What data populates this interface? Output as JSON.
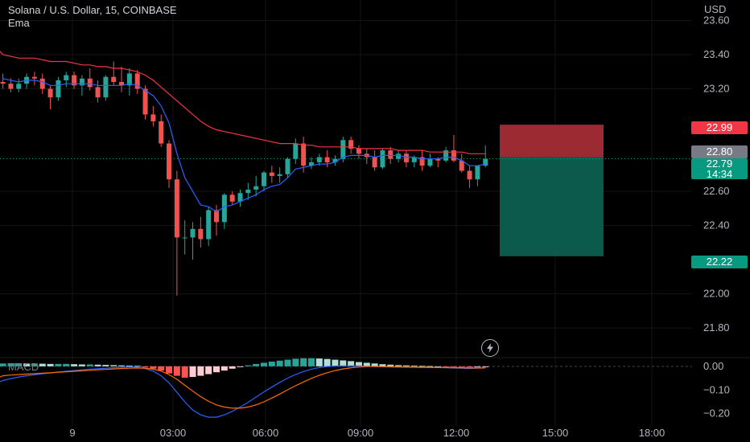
{
  "header": {
    "symbol_line": "Solana / U.S. Dollar, 15, COINBASE",
    "indicator": "Ema",
    "currency": "USD"
  },
  "macd_label": "MACD",
  "colors": {
    "up": "#26a69a",
    "down": "#ef5350",
    "ema_fast": "#2962ff",
    "ema_slow": "#f23645",
    "macd_line": "#2962ff",
    "signal_line": "#ff6d00",
    "stop_zone": "#9b2a33",
    "target_zone": "#0b5a4c",
    "hist_up_strong": "#26a69a",
    "hist_up_weak": "#b2dfdb",
    "hist_down_strong": "#ff5252",
    "hist_down_weak": "#ffcdd2",
    "badge_stop": "#f23645",
    "badge_current": "#787b86",
    "badge_price": "#089981",
    "badge_target": "#089981"
  },
  "badges": {
    "stop": "22.99",
    "current": "22.80",
    "last_price": "22.79",
    "countdown": "14:34",
    "target": "22.22"
  },
  "chart_data": {
    "type": "candlestick",
    "interval": "15",
    "y_ticks": [
      "23.60",
      "23.40",
      "23.20",
      "22.60",
      "22.40",
      "22.00",
      "21.80"
    ],
    "y_ticks_hidden_by_badges": [
      "23.00",
      "22.80",
      "22.20"
    ],
    "ylim": [
      21.65,
      23.72
    ],
    "x_ticks": [
      "9",
      "03:00",
      "06:00",
      "09:00",
      "12:00",
      "15:00",
      "18:00"
    ],
    "macd_ticks": [
      "0.00",
      "−0.10",
      "−0.20"
    ],
    "macd_ylim": [
      -0.235,
      0.03
    ],
    "position": {
      "side": "short",
      "entry": 22.8,
      "stop": 22.99,
      "target": 22.22
    },
    "candles": [
      [
        23.24,
        23.29,
        23.2,
        23.23
      ],
      [
        23.23,
        23.26,
        23.18,
        23.2
      ],
      [
        23.2,
        23.26,
        23.18,
        23.23
      ],
      [
        23.23,
        23.29,
        23.2,
        23.27
      ],
      [
        23.27,
        23.3,
        23.22,
        23.26
      ],
      [
        23.26,
        23.29,
        23.17,
        23.2
      ],
      [
        23.2,
        23.22,
        23.08,
        23.15
      ],
      [
        23.15,
        23.27,
        23.13,
        23.25
      ],
      [
        23.25,
        23.3,
        23.21,
        23.28
      ],
      [
        23.28,
        23.3,
        23.2,
        23.22
      ],
      [
        23.22,
        23.28,
        23.16,
        23.26
      ],
      [
        23.26,
        23.32,
        23.19,
        23.21
      ],
      [
        23.21,
        23.25,
        23.12,
        23.15
      ],
      [
        23.15,
        23.28,
        23.13,
        23.27
      ],
      [
        23.27,
        23.36,
        23.22,
        23.24
      ],
      [
        23.24,
        23.33,
        23.18,
        23.22
      ],
      [
        23.22,
        23.32,
        23.16,
        23.29
      ],
      [
        23.29,
        23.31,
        23.17,
        23.2
      ],
      [
        23.2,
        23.22,
        23.02,
        23.05
      ],
      [
        23.05,
        23.1,
        22.98,
        23.01
      ],
      [
        23.01,
        23.05,
        22.86,
        22.88
      ],
      [
        22.88,
        22.9,
        22.62,
        22.67
      ],
      [
        22.67,
        22.72,
        21.99,
        22.33
      ],
      [
        22.33,
        22.43,
        22.23,
        22.33
      ],
      [
        22.33,
        22.42,
        22.2,
        22.38
      ],
      [
        22.38,
        22.45,
        22.27,
        22.32
      ],
      [
        22.32,
        22.51,
        22.28,
        22.49
      ],
      [
        22.49,
        22.52,
        22.34,
        22.42
      ],
      [
        22.42,
        22.59,
        22.38,
        22.58
      ],
      [
        22.58,
        22.6,
        22.52,
        22.54
      ],
      [
        22.54,
        22.61,
        22.51,
        22.59
      ],
      [
        22.59,
        22.65,
        22.55,
        22.61
      ],
      [
        22.61,
        22.69,
        22.57,
        22.63
      ],
      [
        22.63,
        22.72,
        22.6,
        22.71
      ],
      [
        22.71,
        22.75,
        22.65,
        22.69
      ],
      [
        22.69,
        22.74,
        22.65,
        22.7
      ],
      [
        22.7,
        22.8,
        22.68,
        22.79
      ],
      [
        22.79,
        22.91,
        22.76,
        22.88
      ],
      [
        22.88,
        22.92,
        22.71,
        22.75
      ],
      [
        22.75,
        22.8,
        22.73,
        22.77
      ],
      [
        22.77,
        22.82,
        22.75,
        22.8
      ],
      [
        22.8,
        22.84,
        22.74,
        22.77
      ],
      [
        22.77,
        22.81,
        22.75,
        22.79
      ],
      [
        22.79,
        22.92,
        22.77,
        22.9
      ],
      [
        22.9,
        22.92,
        22.82,
        22.85
      ],
      [
        22.85,
        22.87,
        22.79,
        22.82
      ],
      [
        22.82,
        22.85,
        22.76,
        22.8
      ],
      [
        22.8,
        22.84,
        22.72,
        22.74
      ],
      [
        22.74,
        22.85,
        22.73,
        22.84
      ],
      [
        22.84,
        22.86,
        22.76,
        22.79
      ],
      [
        22.79,
        22.84,
        22.77,
        22.82
      ],
      [
        22.82,
        22.84,
        22.74,
        22.77
      ],
      [
        22.77,
        22.81,
        22.74,
        22.8
      ],
      [
        22.8,
        22.84,
        22.72,
        22.75
      ],
      [
        22.75,
        22.82,
        22.74,
        22.79
      ],
      [
        22.79,
        22.8,
        22.74,
        22.78
      ],
      [
        22.78,
        22.86,
        22.77,
        22.84
      ],
      [
        22.84,
        22.93,
        22.77,
        22.78
      ],
      [
        22.78,
        22.82,
        22.71,
        22.72
      ],
      [
        22.72,
        22.75,
        22.62,
        22.67
      ],
      [
        22.67,
        22.74,
        22.63,
        22.75
      ],
      [
        22.75,
        22.87,
        22.74,
        22.79
      ]
    ],
    "series": [
      {
        "name": "Ema",
        "values": [
          23.26,
          23.25,
          23.24,
          23.25,
          23.25,
          23.24,
          23.22,
          23.22,
          23.23,
          23.23,
          23.23,
          23.23,
          23.22,
          23.22,
          23.22,
          23.22,
          23.23,
          23.22,
          23.19,
          23.16,
          23.1,
          23.0,
          22.82,
          22.68,
          22.6,
          22.52,
          22.51,
          22.48,
          22.51,
          22.52,
          22.54,
          22.56,
          22.58,
          22.61,
          22.63,
          22.64,
          22.68,
          22.73,
          22.74,
          22.75,
          22.76,
          22.76,
          22.77,
          22.8,
          22.81,
          22.81,
          22.81,
          22.8,
          22.81,
          22.81,
          22.81,
          22.8,
          22.8,
          22.79,
          22.79,
          22.79,
          22.8,
          22.8,
          22.78,
          22.75,
          22.75,
          22.76
        ]
      },
      {
        "name": "Ema",
        "values": [
          23.4,
          23.39,
          23.38,
          23.38,
          23.38,
          23.37,
          23.36,
          23.36,
          23.36,
          23.35,
          23.34,
          23.34,
          23.33,
          23.33,
          23.32,
          23.32,
          23.31,
          23.3,
          23.28,
          23.25,
          23.21,
          23.17,
          23.13,
          23.09,
          23.05,
          23.01,
          22.98,
          22.96,
          22.95,
          22.94,
          22.93,
          22.92,
          22.91,
          22.9,
          22.89,
          22.88,
          22.88,
          22.88,
          22.87,
          22.87,
          22.86,
          22.86,
          22.86,
          22.86,
          22.86,
          22.85,
          22.85,
          22.85,
          22.85,
          22.85,
          22.84,
          22.84,
          22.84,
          22.84,
          22.83,
          22.83,
          22.83,
          22.83,
          22.83,
          22.82,
          22.82,
          22.82
        ]
      }
    ],
    "macd": {
      "histogram": [
        0.012,
        0.013,
        0.013,
        0.012,
        0.012,
        0.011,
        0.01,
        0.01,
        0.01,
        0.009,
        0.008,
        0.008,
        0.007,
        0.006,
        0.005,
        0.004,
        0.003,
        0.002,
        -0.005,
        -0.01,
        -0.018,
        -0.03,
        -0.04,
        -0.048,
        -0.045,
        -0.04,
        -0.033,
        -0.025,
        -0.018,
        -0.01,
        -0.003,
        0.004,
        0.01,
        0.015,
        0.02,
        0.024,
        0.028,
        0.032,
        0.034,
        0.034,
        0.033,
        0.031,
        0.028,
        0.025,
        0.022,
        0.018,
        0.015,
        0.012,
        0.009,
        0.007,
        0.005,
        0.004,
        0.003,
        0.002,
        0.001,
        0.0,
        -0.001,
        -0.002,
        -0.003,
        -0.004,
        -0.003,
        -0.002
      ],
      "macd": [
        -0.06,
        -0.052,
        -0.045,
        -0.04,
        -0.036,
        -0.032,
        -0.028,
        -0.024,
        -0.021,
        -0.018,
        -0.015,
        -0.012,
        -0.01,
        -0.008,
        -0.006,
        -0.004,
        -0.003,
        -0.004,
        -0.01,
        -0.02,
        -0.04,
        -0.07,
        -0.11,
        -0.15,
        -0.185,
        -0.205,
        -0.215,
        -0.215,
        -0.205,
        -0.19,
        -0.172,
        -0.152,
        -0.13,
        -0.108,
        -0.088,
        -0.068,
        -0.05,
        -0.035,
        -0.022,
        -0.012,
        -0.005,
        -0.001,
        0.001,
        0.002,
        0.002,
        0.001,
        0.0,
        -0.001,
        -0.002,
        -0.003,
        -0.003,
        -0.004,
        -0.004,
        -0.005,
        -0.005,
        -0.005,
        -0.006,
        -0.007,
        -0.008,
        -0.009,
        -0.008,
        -0.007
      ],
      "signal": [
        -0.04,
        -0.037,
        -0.035,
        -0.033,
        -0.031,
        -0.029,
        -0.027,
        -0.025,
        -0.023,
        -0.021,
        -0.019,
        -0.017,
        -0.015,
        -0.013,
        -0.011,
        -0.009,
        -0.008,
        -0.007,
        -0.008,
        -0.012,
        -0.02,
        -0.035,
        -0.055,
        -0.08,
        -0.105,
        -0.128,
        -0.148,
        -0.163,
        -0.172,
        -0.177,
        -0.177,
        -0.172,
        -0.163,
        -0.15,
        -0.134,
        -0.117,
        -0.099,
        -0.082,
        -0.066,
        -0.051,
        -0.038,
        -0.027,
        -0.018,
        -0.011,
        -0.006,
        -0.003,
        -0.001,
        0.0,
        -0.001,
        -0.002,
        -0.003,
        -0.003,
        -0.004,
        -0.004,
        -0.004,
        -0.005,
        -0.005,
        -0.006,
        -0.006,
        -0.007,
        -0.007,
        -0.007
      ]
    }
  }
}
